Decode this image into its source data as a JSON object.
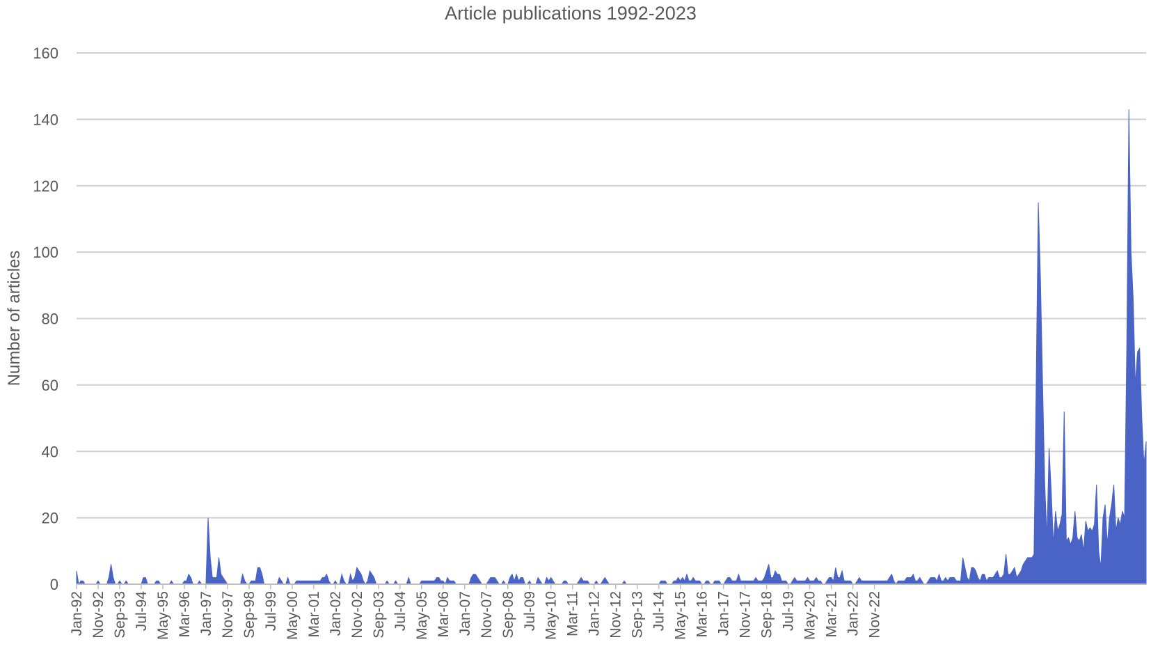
{
  "chart_data": {
    "type": "area",
    "title": "Article publications 1992-2023",
    "xlabel": "",
    "ylabel": "Number of articles",
    "ylim": [
      0,
      160
    ],
    "yticks": [
      0,
      20,
      40,
      60,
      80,
      100,
      120,
      140,
      160
    ],
    "grid": true,
    "color": "#4a63c7",
    "x_start": "Jan-92",
    "x_end": "Dec-22",
    "xtick_labels": [
      "Jan-92",
      "Nov-92",
      "Sep-93",
      "Jul-94",
      "May-95",
      "Mar-96",
      "Jan-97",
      "Nov-97",
      "Sep-98",
      "Jul-99",
      "May-00",
      "Mar-01",
      "Jan-02",
      "Nov-02",
      "Sep-03",
      "Jul-04",
      "May-05",
      "Mar-06",
      "Jan-07",
      "Nov-07",
      "Sep-08",
      "Jul-09",
      "May-10",
      "Mar-11",
      "Jan-12",
      "Nov-12",
      "Sep-13",
      "Jul-14",
      "May-15",
      "Mar-16",
      "Jan-17",
      "Nov-17",
      "Sep-18",
      "Jul-19",
      "May-20",
      "Mar-21",
      "Jan-22",
      "Nov-22"
    ],
    "series": [
      {
        "values": [
          4,
          0,
          1,
          1,
          0,
          0,
          0,
          0,
          0,
          0,
          1,
          0,
          0,
          0,
          0,
          2,
          6,
          2,
          0,
          0,
          1,
          0,
          0,
          1,
          0,
          0,
          0,
          0,
          0,
          0,
          0,
          2,
          2,
          0,
          0,
          0,
          0,
          1,
          1,
          0,
          0,
          0,
          0,
          0,
          1,
          0,
          0,
          0,
          0,
          0,
          1,
          1,
          3,
          2,
          0,
          0,
          0,
          1,
          0,
          0,
          0,
          20,
          8,
          2,
          2,
          2,
          8,
          3,
          2,
          1,
          0,
          0,
          0,
          0,
          0,
          0,
          0,
          3,
          1,
          0,
          0,
          1,
          1,
          1,
          5,
          5,
          3,
          0,
          0,
          0,
          0,
          0,
          0,
          0,
          2,
          1,
          0,
          0,
          2,
          0,
          0,
          0,
          1,
          1,
          1,
          1,
          1,
          1,
          1,
          1,
          1,
          1,
          1,
          1,
          2,
          2,
          3,
          1,
          0,
          0,
          1,
          0,
          0,
          3,
          1,
          0,
          0,
          3,
          1,
          2,
          5,
          4,
          3,
          1,
          0,
          1,
          4,
          3,
          2,
          0,
          0,
          0,
          0,
          0,
          1,
          0,
          0,
          0,
          1,
          0,
          0,
          0,
          0,
          0,
          2,
          0,
          0,
          0,
          0,
          0,
          1,
          1,
          1,
          1,
          1,
          1,
          1,
          2,
          2,
          1,
          1,
          0,
          2,
          1,
          1,
          1,
          0,
          0,
          0,
          0,
          0,
          0,
          0,
          2,
          3,
          3,
          2,
          1,
          0,
          0,
          0,
          1,
          2,
          2,
          2,
          1,
          0,
          0,
          1,
          0,
          0,
          2,
          3,
          1,
          3,
          1,
          2,
          2,
          0,
          0,
          1,
          0,
          0,
          0,
          2,
          1,
          0,
          0,
          2,
          1,
          2,
          1,
          0,
          0,
          0,
          0,
          1,
          1,
          0,
          0,
          0,
          0,
          0,
          1,
          2,
          1,
          1,
          1,
          0,
          0,
          0,
          1,
          0,
          0,
          1,
          2,
          1,
          0,
          0,
          0,
          0,
          0,
          0,
          0,
          1,
          0,
          0,
          0,
          0,
          0,
          0,
          0,
          0,
          0,
          0,
          0,
          0,
          0,
          0,
          0,
          0,
          1,
          1,
          1,
          0,
          0,
          0,
          1,
          1,
          2,
          1,
          2,
          1,
          3,
          1,
          1,
          2,
          1,
          1,
          1,
          0,
          0,
          1,
          1,
          0,
          0,
          1,
          1,
          1,
          0,
          0,
          1,
          2,
          2,
          1,
          1,
          1,
          3,
          1,
          1,
          1,
          1,
          1,
          1,
          1,
          2,
          1,
          1,
          1,
          2,
          4,
          6,
          2,
          2,
          4,
          3,
          3,
          1,
          1,
          1,
          0,
          0,
          1,
          2,
          1,
          1,
          1,
          1,
          1,
          2,
          1,
          1,
          1,
          2,
          1,
          1,
          0,
          0,
          1,
          2,
          2,
          1,
          5,
          2,
          2,
          4,
          1,
          1,
          1,
          1,
          0,
          0,
          1,
          2,
          1,
          1,
          1,
          1,
          1,
          1,
          1,
          1,
          1,
          1,
          1,
          1,
          1,
          2,
          3,
          1,
          0,
          1,
          1,
          1,
          1,
          2,
          2,
          2,
          3,
          1,
          1,
          2,
          1,
          0,
          0,
          1,
          2,
          2,
          2,
          1,
          3,
          1,
          1,
          2,
          1,
          2,
          2,
          2,
          1,
          1,
          1,
          8,
          5,
          2,
          1,
          5,
          5,
          4,
          2,
          1,
          3,
          3,
          1,
          2,
          2,
          2,
          3,
          4,
          2,
          2,
          3,
          9,
          3,
          3,
          4,
          5,
          2,
          3,
          4,
          6,
          7,
          8,
          8,
          8,
          9,
          60,
          115,
          92,
          60,
          30,
          14,
          41,
          28,
          12,
          22,
          16,
          18,
          21,
          52,
          13,
          14,
          12,
          14,
          22,
          14,
          13,
          15,
          10,
          19,
          16,
          17,
          16,
          18,
          30,
          10,
          5,
          20,
          24,
          12,
          20,
          24,
          30,
          16,
          20,
          18,
          22,
          20,
          70,
          143,
          100,
          86,
          60,
          70,
          71,
          50,
          36,
          43
        ]
      }
    ]
  }
}
